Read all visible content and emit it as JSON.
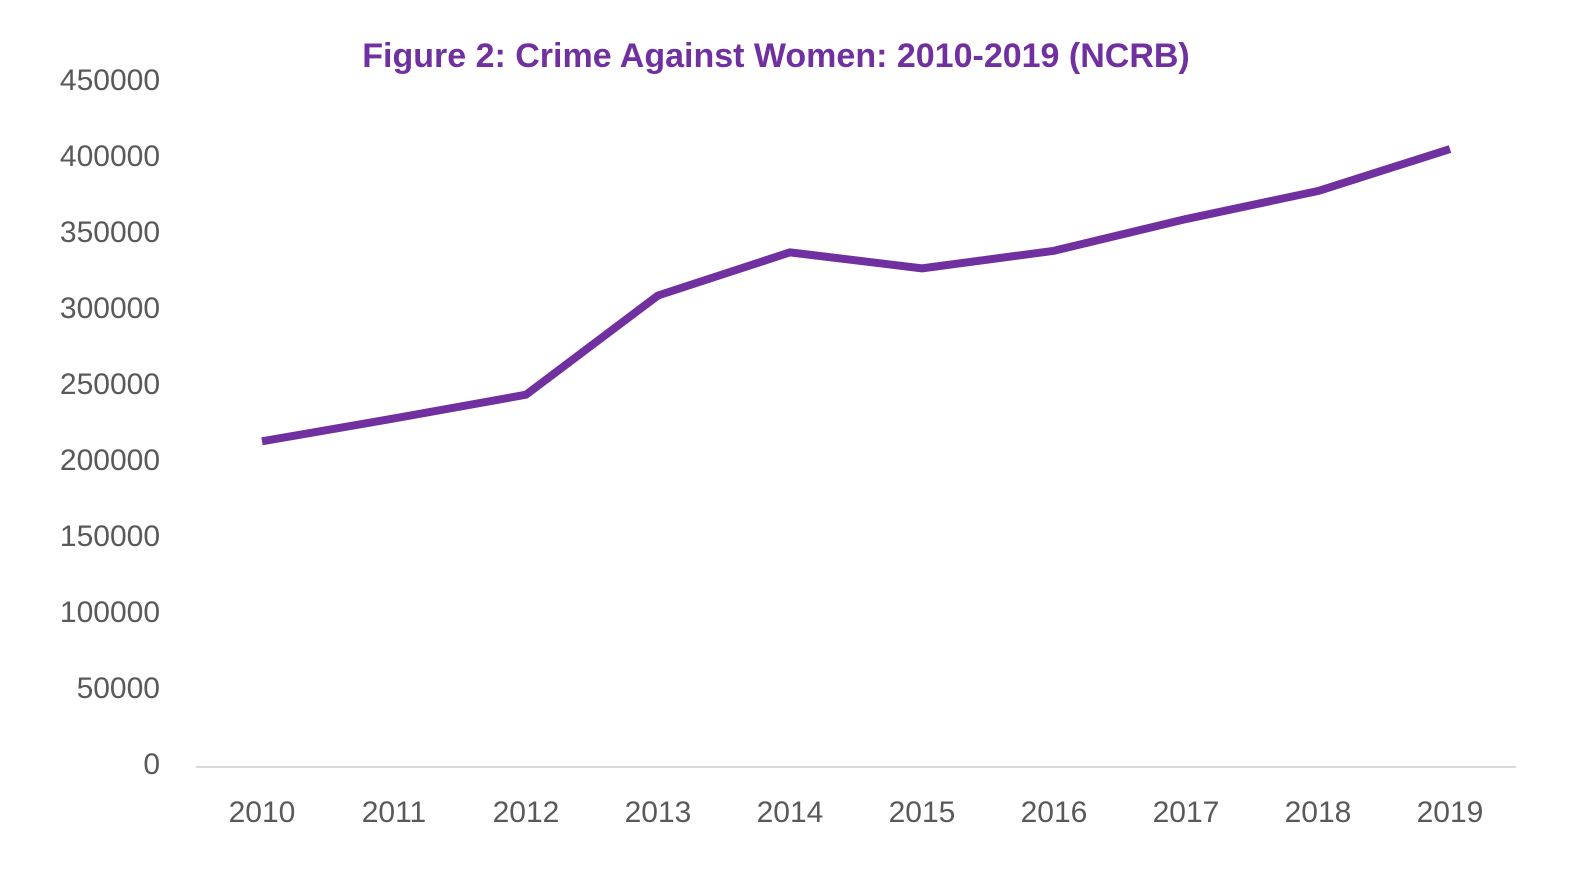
{
  "chart_data": {
    "type": "line",
    "title": "Figure 2: Crime Against Women: 2010-2019 (NCRB)",
    "categories": [
      "2010",
      "2011",
      "2012",
      "2013",
      "2014",
      "2015",
      "2016",
      "2017",
      "2018",
      "2019"
    ],
    "series": [
      {
        "name": "Crime Against Women",
        "color": "#7030a0",
        "values": [
          213585,
          228650,
          244270,
          309546,
          337922,
          327394,
          338954,
          359849,
          378277,
          405861
        ]
      }
    ],
    "ylim": [
      0,
      450000
    ],
    "yticks": [
      0,
      50000,
      100000,
      150000,
      200000,
      250000,
      300000,
      350000,
      400000,
      450000
    ],
    "grid": false,
    "legend": false
  }
}
